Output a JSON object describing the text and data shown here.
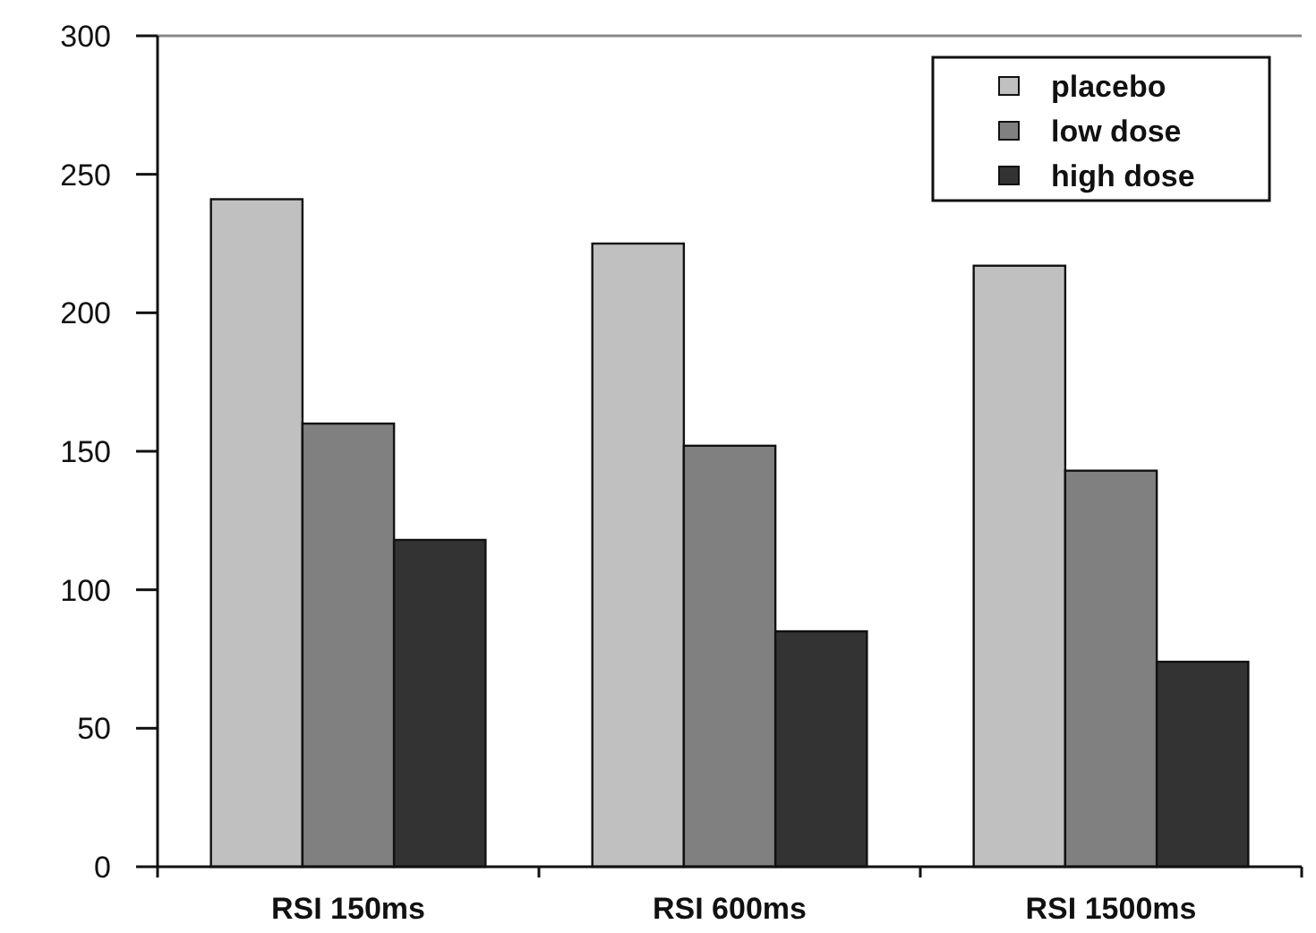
{
  "chart_data": {
    "type": "bar",
    "categories": [
      "RSI 150ms",
      "RSI 600ms",
      "RSI 1500ms"
    ],
    "series": [
      {
        "name": "placebo",
        "color": "#c0c0c0",
        "values": [
          241,
          225,
          217
        ]
      },
      {
        "name": "low dose",
        "color": "#808080",
        "values": [
          160,
          152,
          143
        ]
      },
      {
        "name": "high dose",
        "color": "#333333",
        "values": [
          118,
          85,
          74
        ]
      }
    ],
    "ylim": [
      0,
      300
    ],
    "yticks": [
      0,
      50,
      100,
      150,
      200,
      250,
      300
    ],
    "legend": "top right",
    "grid": false
  }
}
